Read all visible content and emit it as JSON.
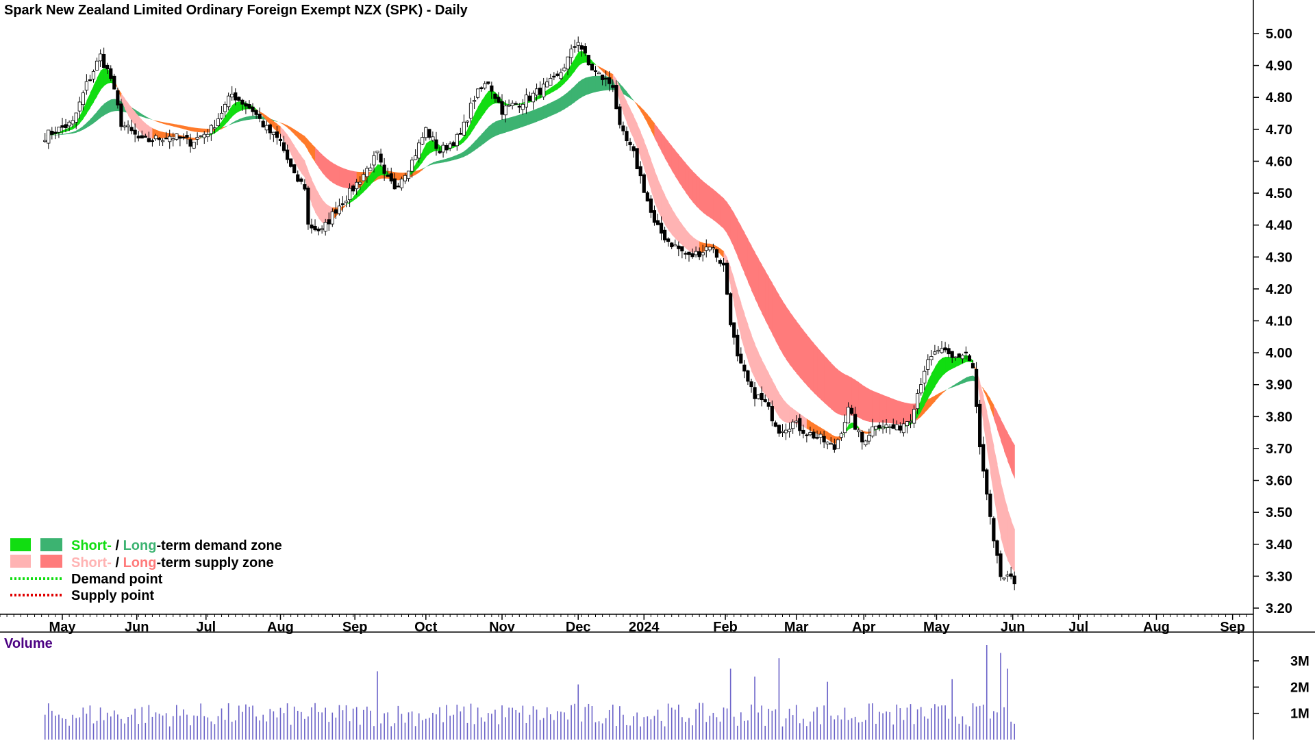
{
  "chart_data": {
    "type": "candlestick",
    "title": "Spark New Zealand Limited Ordinary Foreign Exempt NZX (SPK) - Daily",
    "ylim": [
      3.2,
      5.0
    ],
    "yticks": [
      5.0,
      4.9,
      4.8,
      4.7,
      4.6,
      4.5,
      4.4,
      4.3,
      4.2,
      4.1,
      4.0,
      3.9,
      3.8,
      3.7,
      3.6,
      3.5,
      3.4,
      3.3,
      3.2
    ],
    "ytick_labels": [
      "5.00",
      "4.90",
      "4.80",
      "4.70",
      "4.60",
      "4.50",
      "4.40",
      "4.30",
      "4.20",
      "4.10",
      "4.00",
      "3.90",
      "3.80",
      "3.70",
      "3.60",
      "3.50",
      "3.40",
      "3.30",
      "3.20"
    ],
    "month_labels": [
      "May",
      "Jun",
      "Jul",
      "Aug",
      "Sep",
      "Oct",
      "Nov",
      "Dec",
      "2024",
      "Feb",
      "Mar",
      "Apr",
      "May",
      "Jun",
      "Jul",
      "Aug",
      "Sep"
    ],
    "month_positions": [
      5.0,
      26.5,
      46.5,
      68.0,
      89.5,
      110.0,
      132.0,
      154.0,
      173.0,
      196.5,
      217.0,
      236.5,
      257.5,
      279.5,
      298.5,
      321.0,
      343.0
    ],
    "x_domain": [
      -13,
      349
    ],
    "close_keypoints": [
      [
        0,
        4.68
      ],
      [
        4,
        4.7
      ],
      [
        8,
        4.72
      ],
      [
        12,
        4.84
      ],
      [
        16,
        4.93
      ],
      [
        19,
        4.86
      ],
      [
        22,
        4.72
      ],
      [
        28,
        4.66
      ],
      [
        36,
        4.68
      ],
      [
        42,
        4.66
      ],
      [
        48,
        4.7
      ],
      [
        54,
        4.81
      ],
      [
        60,
        4.76
      ],
      [
        64,
        4.7
      ],
      [
        68,
        4.66
      ],
      [
        72,
        4.55
      ],
      [
        75,
        4.52
      ],
      [
        76,
        4.4
      ],
      [
        80,
        4.38
      ],
      [
        84,
        4.45
      ],
      [
        88,
        4.5
      ],
      [
        92,
        4.56
      ],
      [
        96,
        4.62
      ],
      [
        98,
        4.55
      ],
      [
        101,
        4.52
      ],
      [
        106,
        4.6
      ],
      [
        110,
        4.7
      ],
      [
        114,
        4.63
      ],
      [
        120,
        4.68
      ],
      [
        124,
        4.8
      ],
      [
        128,
        4.85
      ],
      [
        132,
        4.76
      ],
      [
        140,
        4.8
      ],
      [
        148,
        4.86
      ],
      [
        154,
        4.98
      ],
      [
        157,
        4.9
      ],
      [
        162,
        4.85
      ],
      [
        164,
        4.84
      ],
      [
        166,
        4.7
      ],
      [
        170,
        4.62
      ],
      [
        172,
        4.55
      ],
      [
        176,
        4.4
      ],
      [
        180,
        4.35
      ],
      [
        186,
        4.3
      ],
      [
        190,
        4.32
      ],
      [
        192,
        4.34
      ],
      [
        196,
        4.27
      ],
      [
        198,
        4.1
      ],
      [
        200,
        3.98
      ],
      [
        204,
        3.88
      ],
      [
        208,
        3.84
      ],
      [
        212,
        3.76
      ],
      [
        216,
        3.78
      ],
      [
        220,
        3.75
      ],
      [
        224,
        3.73
      ],
      [
        228,
        3.7
      ],
      [
        232,
        3.82
      ],
      [
        236,
        3.72
      ],
      [
        240,
        3.78
      ],
      [
        246,
        3.76
      ],
      [
        250,
        3.8
      ],
      [
        254,
        3.95
      ],
      [
        258,
        4.01
      ],
      [
        262,
        3.98
      ],
      [
        266,
        4.0
      ],
      [
        268,
        3.95
      ],
      [
        270,
        3.7
      ],
      [
        274,
        3.4
      ],
      [
        276,
        3.3
      ],
      [
        280,
        3.28
      ]
    ],
    "volume_ylim": [
      0,
      4000000
    ],
    "volume_ticks": [
      3000000,
      2000000,
      1000000
    ],
    "volume_tick_labels": [
      "3M",
      "2M",
      "1M"
    ],
    "volume_label": "Volume",
    "volume_spikes": [
      [
        96,
        2600000
      ],
      [
        154,
        2100000
      ],
      [
        198,
        2700000
      ],
      [
        205,
        2400000
      ],
      [
        212,
        3100000
      ],
      [
        226,
        2200000
      ],
      [
        262,
        2300000
      ],
      [
        272,
        3600000
      ],
      [
        276,
        3300000
      ],
      [
        278,
        2700000
      ]
    ]
  },
  "colors": {
    "short_demand": "#11dd11",
    "long_demand": "#3cb371",
    "short_supply": "#ffb3b3",
    "long_supply": "#ff7b7b",
    "transition": "#ff7a2a",
    "candle": "#000000",
    "volume": "#6a62c8",
    "volume_label": "#4b0082"
  },
  "legend": {
    "row1_short": "Short-",
    "row1_sep": " / ",
    "row1_long": "Long",
    "row1_tail": "-term demand zone",
    "row2_short": "Short-",
    "row2_sep": " / ",
    "row2_long": "Long",
    "row2_tail": "-term supply zone",
    "row3": "Demand point",
    "row4": "Supply point"
  }
}
